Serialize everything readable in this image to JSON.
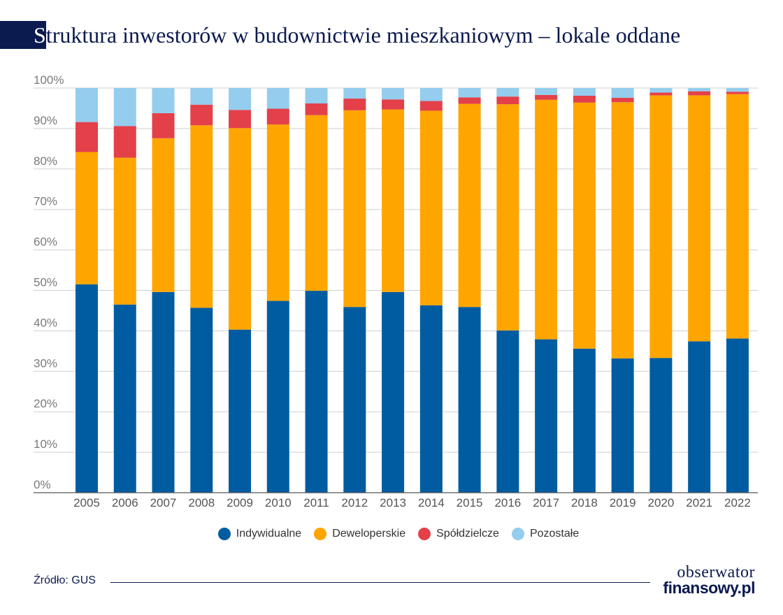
{
  "header": {
    "title_first": "S",
    "title_rest": "truktura inwestorów w budownictwie mieszkaniowym – lokale oddane"
  },
  "chart_data": {
    "type": "bar",
    "stacked": true,
    "categories": [
      "2005",
      "2006",
      "2007",
      "2008",
      "2009",
      "2010",
      "2011",
      "2012",
      "2013",
      "2014",
      "2015",
      "2016",
      "2017",
      "2018",
      "2019",
      "2020",
      "2021",
      "2022"
    ],
    "series": [
      {
        "name": "Indywidualne",
        "color": "#005ca0",
        "values": [
          51.5,
          46.5,
          49.6,
          45.7,
          40.3,
          47.4,
          49.9,
          45.9,
          49.6,
          46.3,
          45.9,
          40.1,
          37.9,
          35.6,
          33.2,
          33.3,
          37.4,
          38.1
        ]
      },
      {
        "name": "Deweloperskie",
        "color": "#ffa500",
        "values": [
          32.7,
          36.3,
          38.0,
          45.1,
          49.8,
          43.6,
          43.4,
          48.6,
          45.1,
          48.1,
          50.2,
          55.9,
          59.2,
          60.8,
          63.3,
          64.9,
          60.8,
          60.4
        ]
      },
      {
        "name": "Spółdzielcze",
        "color": "#e3404a",
        "values": [
          7.4,
          7.8,
          6.2,
          5.1,
          4.5,
          3.9,
          2.9,
          2.9,
          2.5,
          2.4,
          1.6,
          1.9,
          1.2,
          1.7,
          1.1,
          0.7,
          1.0,
          0.6
        ]
      },
      {
        "name": "Pozostałe",
        "color": "#94cdee",
        "values": [
          8.4,
          9.4,
          6.2,
          4.1,
          5.4,
          5.1,
          3.8,
          2.6,
          2.8,
          3.2,
          2.3,
          2.1,
          1.7,
          1.9,
          2.4,
          1.1,
          0.8,
          0.9
        ]
      }
    ],
    "y_ticks": [
      "0%",
      "10%",
      "20%",
      "30%",
      "40%",
      "50%",
      "60%",
      "70%",
      "80%",
      "90%",
      "100%"
    ],
    "ylim": [
      0,
      100
    ],
    "title": "Struktura inwestorów w budownictwie mieszkaniowym – lokale oddane",
    "xlabel": "",
    "ylabel": "",
    "grid": true,
    "legend_position": "bottom-center"
  },
  "footer": {
    "source": "Źródło: GUS",
    "logo_line1": "obserwator",
    "logo_line2": "finansowy.pl"
  }
}
